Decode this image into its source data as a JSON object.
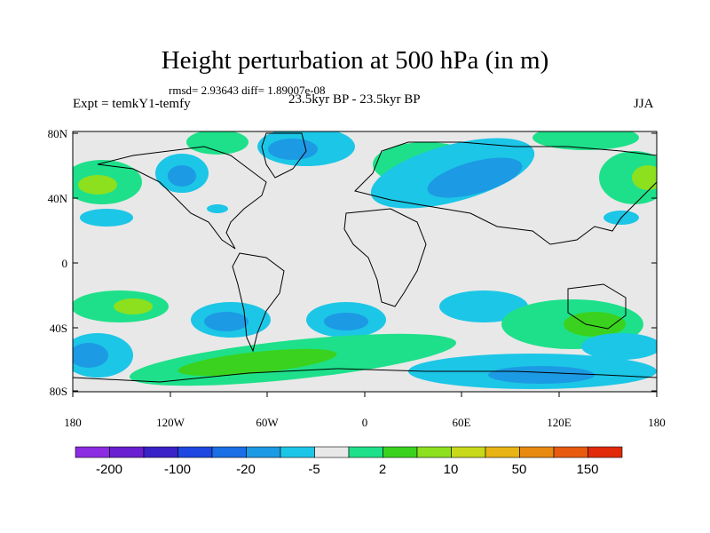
{
  "title": "Height perturbation at 500 hPa (in m)",
  "stats_text": "rmsd= 2.93643 diff= 1.89007e-08",
  "expt_label": "Expt = temkY1-temfy",
  "period_label": "23.5kyr BP - 23.5kyr BP",
  "season_label": "JJA",
  "map": {
    "lat_labels": [
      "80N",
      "40N",
      "0",
      "40S",
      "80S"
    ],
    "lon_labels": [
      "180",
      "120W",
      "60W",
      "0",
      "60E",
      "120E",
      "180"
    ],
    "ocean_background": "#e8e8e8",
    "coastline_color": "#000000"
  },
  "colorbar": {
    "colors": [
      "#8b2be2",
      "#6a1fd0",
      "#3a22c8",
      "#1e46e0",
      "#1a6ee6",
      "#1c9ae4",
      "#1cc6e6",
      "#e8e8e8",
      "#1ee08a",
      "#3ad21e",
      "#8ce01e",
      "#c8d81a",
      "#e6b414",
      "#e88a10",
      "#e85a0e",
      "#e02a0a"
    ],
    "labels": [
      "-200",
      "-100",
      "-20",
      "-5",
      "2",
      "10",
      "50",
      "150"
    ]
  }
}
